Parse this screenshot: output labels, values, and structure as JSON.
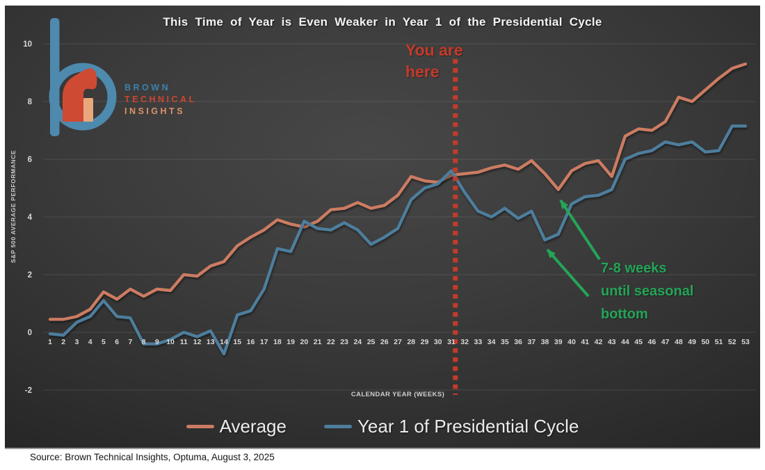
{
  "title": "This Time of Year is Even Weaker in Year 1 of the Presidential Cycle",
  "logo": {
    "line1": "BROWN",
    "line2": "TECHNICAL",
    "line3": "INSIGHTS"
  },
  "annotations": {
    "you_are_here": {
      "line1": "You are",
      "line2": "here"
    },
    "seasonal": {
      "line1": "7-8 weeks",
      "line2": "until seasonal",
      "line3": "bottom"
    }
  },
  "legend": {
    "items": [
      {
        "label": "Average",
        "color": "#cc7c62"
      },
      {
        "label": "Year 1 of Presidential Cycle",
        "color": "#4e7e9d"
      }
    ]
  },
  "source": "Source: Brown Technical Insights, Optuma, August 3, 2025",
  "colors": {
    "average": "#cc7c62",
    "year1": "#4e7e9d",
    "red_annotation": "#c23b2b",
    "green_annotation": "#24a557",
    "background": "#3b3b3b"
  },
  "chart_data": {
    "type": "line",
    "title": "This Time of Year is Even Weaker in Year 1 of the Presidential Cycle",
    "xlabel": "CALENDAR YEAR (WEEKS)",
    "ylabel": "S&P 500 AVERAGE PERFORMANCE",
    "x": [
      1,
      2,
      3,
      4,
      5,
      6,
      7,
      8,
      9,
      10,
      11,
      12,
      13,
      14,
      15,
      16,
      17,
      18,
      19,
      20,
      21,
      22,
      23,
      24,
      25,
      26,
      27,
      28,
      29,
      30,
      31,
      32,
      33,
      34,
      35,
      36,
      37,
      38,
      39,
      40,
      41,
      42,
      43,
      44,
      45,
      46,
      47,
      48,
      49,
      50,
      51,
      52,
      53
    ],
    "ylim": [
      -2,
      10
    ],
    "yticks": [
      -2,
      0,
      2,
      4,
      6,
      8,
      10
    ],
    "grid": true,
    "legend_position": "bottom",
    "series": [
      {
        "name": "Average",
        "color": "#cc7c62",
        "values": [
          0.45,
          0.45,
          0.55,
          0.8,
          1.4,
          1.15,
          1.5,
          1.25,
          1.5,
          1.45,
          2.0,
          1.95,
          2.3,
          2.45,
          3.0,
          3.3,
          3.55,
          3.9,
          3.75,
          3.65,
          3.85,
          4.25,
          4.3,
          4.5,
          4.3,
          4.4,
          4.75,
          5.4,
          5.25,
          5.2,
          5.45,
          5.5,
          5.55,
          5.7,
          5.8,
          5.65,
          5.95,
          5.5,
          4.95,
          5.6,
          5.85,
          5.95,
          5.4,
          6.8,
          7.05,
          7.0,
          7.3,
          8.15,
          8.0,
          8.4,
          8.8,
          9.15,
          9.3
        ]
      },
      {
        "name": "Year 1 of Presidential Cycle",
        "color": "#4e7e9d",
        "values": [
          -0.05,
          -0.1,
          0.35,
          0.55,
          1.1,
          0.55,
          0.5,
          -0.4,
          -0.4,
          -0.25,
          0.0,
          -0.15,
          0.05,
          -0.75,
          0.6,
          0.75,
          1.5,
          2.9,
          2.8,
          3.85,
          3.6,
          3.55,
          3.8,
          3.55,
          3.05,
          3.3,
          3.6,
          4.6,
          5.0,
          5.15,
          5.6,
          4.85,
          4.2,
          4.0,
          4.3,
          3.95,
          4.2,
          3.2,
          3.4,
          4.45,
          4.7,
          4.75,
          4.95,
          6.0,
          6.2,
          6.3,
          6.6,
          6.5,
          6.6,
          6.25,
          6.3,
          7.15,
          7.15
        ]
      }
    ],
    "vline": {
      "week": 31.3,
      "color": "#c23b2b",
      "style": "dotted",
      "label": "You are here"
    }
  }
}
